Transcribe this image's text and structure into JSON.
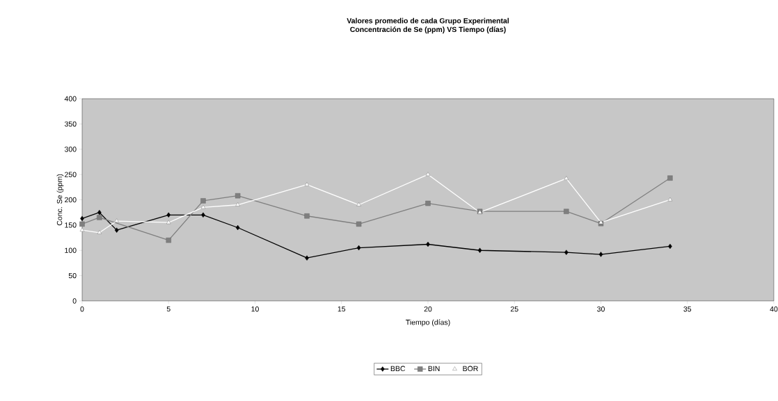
{
  "chart_data": {
    "type": "line",
    "title": "Valores promedio de cada Grupo Experimental",
    "subtitle": "Concentración de Se (ppm)   VS   Tiempo (días)",
    "xlabel": "Tiempo (días)",
    "ylabel": "Conc. Se   (ppm)",
    "x": [
      0,
      1,
      2,
      5,
      7,
      9,
      13,
      16,
      20,
      23,
      28,
      30,
      34
    ],
    "series": [
      {
        "name": "BBC",
        "color": "#000000",
        "marker": "diamond",
        "values": [
          163,
          175,
          140,
          170,
          170,
          145,
          85,
          105,
          112,
          100,
          96,
          92,
          108
        ]
      },
      {
        "name": "BIN",
        "color": "#7f7f7f",
        "marker": "square",
        "values": [
          152,
          165,
          null,
          120,
          198,
          208,
          168,
          152,
          193,
          177,
          177,
          153,
          243
        ]
      },
      {
        "name": "BOR",
        "color": "#ffffff",
        "marker": "triangle",
        "values": [
          140,
          135,
          158,
          155,
          185,
          190,
          230,
          190,
          250,
          175,
          242,
          155,
          200
        ]
      }
    ],
    "xlim": [
      0,
      40
    ],
    "xticks": [
      0,
      5,
      10,
      15,
      20,
      25,
      30,
      35,
      40
    ],
    "ylim": [
      0,
      400
    ],
    "yticks": [
      0,
      50,
      100,
      150,
      200,
      250,
      300,
      350,
      400
    ],
    "grid": false,
    "legend": "bottom",
    "line_style": "solid"
  }
}
